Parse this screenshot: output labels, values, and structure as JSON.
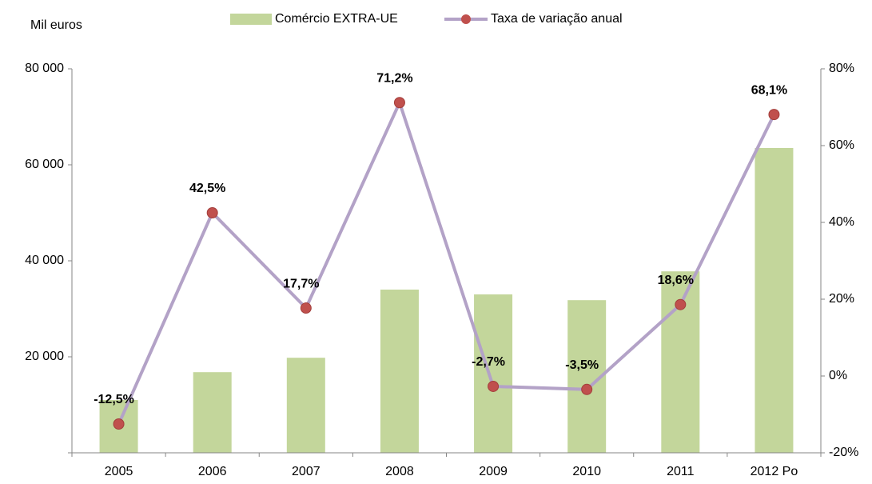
{
  "chart_data": {
    "type": "bar_line",
    "y_label": "Mil euros",
    "categories": [
      "2005",
      "2006",
      "2007",
      "2008",
      "2009",
      "2010",
      "2011",
      "2012 Po"
    ],
    "series": [
      {
        "name": "Comércio EXTRA-UE",
        "color": "#c3d69b",
        "type": "bar",
        "values": [
          11000,
          16800,
          19800,
          34000,
          33000,
          31800,
          37800,
          63500
        ]
      },
      {
        "name": "Taxa de variação anual",
        "color": "#b3a2c7",
        "marker_color": "#c0504d",
        "type": "line",
        "axis": "y2",
        "values": [
          -12.5,
          42.5,
          17.7,
          71.2,
          -2.7,
          -3.5,
          18.6,
          68.1
        ],
        "value_labels": [
          "-12,5%",
          "42,5%",
          "17,7%",
          "71,2%",
          "-2,7%",
          "-3,5%",
          "18,6%",
          "68,1%"
        ]
      }
    ],
    "ylim": [
      0,
      80000
    ],
    "yticks": [
      {
        "value": 0,
        "label": ""
      },
      {
        "value": 20000,
        "label": "20 000"
      },
      {
        "value": 40000,
        "label": "40 000"
      },
      {
        "value": 60000,
        "label": "60 000"
      },
      {
        "value": 80000,
        "label": "80 000"
      }
    ],
    "y2lim": [
      -20,
      80
    ],
    "y2ticks": [
      {
        "value": -20,
        "label": "-20%"
      },
      {
        "value": 0,
        "label": "0%"
      },
      {
        "value": 20,
        "label": "20%"
      },
      {
        "value": 40,
        "label": "40%"
      },
      {
        "value": 60,
        "label": "60%"
      },
      {
        "value": 80,
        "label": "80%"
      }
    ],
    "legend": "top"
  }
}
